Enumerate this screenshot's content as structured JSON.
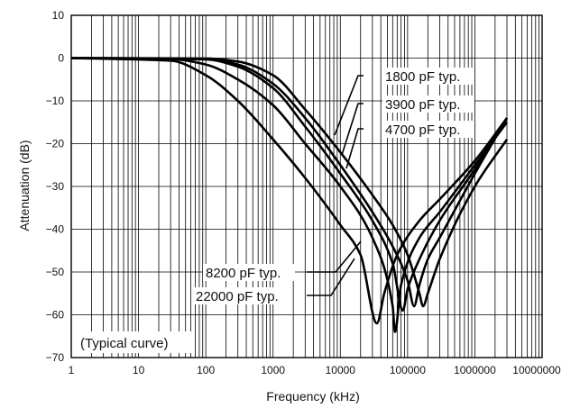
{
  "chart_data": {
    "type": "line",
    "xlabel": "Frequency (kHz)",
    "ylabel": "Attenuation (dB)",
    "x_scale": "log",
    "xlim": [
      1,
      10000000
    ],
    "ylim": [
      -70,
      10
    ],
    "grid": true,
    "x_tick_labels": [
      "1",
      "10",
      "100",
      "1000",
      "10000",
      "100000",
      "1000000",
      "10000000"
    ],
    "y_tick_labels": [
      "10",
      "0",
      "−10",
      "−20",
      "−30",
      "−40",
      "−50",
      "−60",
      "−70"
    ],
    "y_ticks": [
      10,
      0,
      -10,
      -20,
      -30,
      -40,
      -50,
      -60,
      -70
    ],
    "annotation": "(Typical curve)",
    "series": [
      {
        "name": "1800 pF typ.",
        "x": [
          1,
          100,
          300,
          1000,
          3000,
          10000,
          30000,
          60000,
          100000,
          150000,
          170000,
          200000,
          300000,
          1000000,
          3000000
        ],
        "y": [
          0,
          -0.1,
          -0.8,
          -4,
          -12,
          -22,
          -32,
          -39,
          -46,
          -55,
          -58,
          -55,
          -47,
          -30,
          -19
        ]
      },
      {
        "name": "3900 pF typ.",
        "x": [
          1,
          100,
          300,
          1000,
          3000,
          10000,
          30000,
          60000,
          100000,
          125000,
          150000,
          200000,
          300000,
          1000000,
          3000000
        ],
        "y": [
          0,
          -0.2,
          -1.5,
          -6,
          -14,
          -25,
          -36,
          -44,
          -52,
          -58,
          -53,
          -47,
          -42,
          -27,
          -14
        ]
      },
      {
        "name": "4700 pF typ.",
        "x": [
          1,
          100,
          300,
          1000,
          3000,
          10000,
          30000,
          60000,
          85000,
          100000,
          150000,
          300000,
          1000000,
          3000000
        ],
        "y": [
          0,
          -0.3,
          -2,
          -7,
          -16,
          -27,
          -38,
          -48,
          -59,
          -54,
          -47,
          -38,
          -26,
          -14
        ]
      },
      {
        "name": "8200 pF typ.",
        "x": [
          1,
          30,
          100,
          300,
          1000,
          3000,
          10000,
          30000,
          60000,
          65000,
          80000,
          150000,
          300000,
          1000000,
          3000000
        ],
        "y": [
          0,
          -0.2,
          -1.5,
          -5,
          -11,
          -20,
          -30,
          -42,
          -58,
          -64,
          -53,
          -42,
          -36,
          -25,
          -15
        ]
      },
      {
        "name": "22000 pF typ.",
        "x": [
          1,
          30,
          100,
          300,
          1000,
          3000,
          10000,
          20000,
          35000,
          45000,
          70000,
          150000,
          300000,
          1000000,
          3000000
        ],
        "y": [
          0,
          -0.6,
          -4,
          -10,
          -19,
          -28,
          -39,
          -46,
          -62,
          -55,
          -46,
          -38,
          -33,
          -24,
          -14
        ]
      }
    ]
  }
}
